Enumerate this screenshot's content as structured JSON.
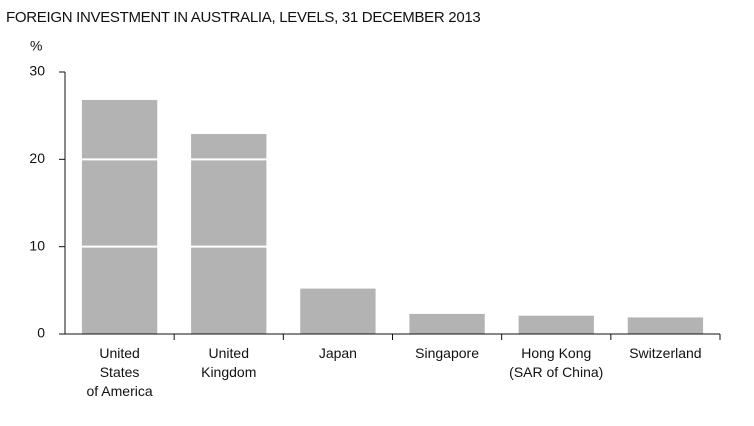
{
  "chart_data": {
    "type": "bar",
    "title": "FOREIGN INVESTMENT IN AUSTRALIA, LEVELS, 31 DECEMBER 2013",
    "y_label": "%",
    "categories": [
      "United\nStates\nof America",
      "United\nKingdom",
      "Japan",
      "Singapore",
      "Hong Kong\n(SAR of China)",
      "Switzerland"
    ],
    "values": [
      26.8,
      22.9,
      5.2,
      2.3,
      2.1,
      1.9
    ],
    "color": "#b3b3b3",
    "ylim": [
      0,
      30
    ],
    "yticks": [
      0,
      10,
      20,
      30
    ],
    "grid": true
  }
}
